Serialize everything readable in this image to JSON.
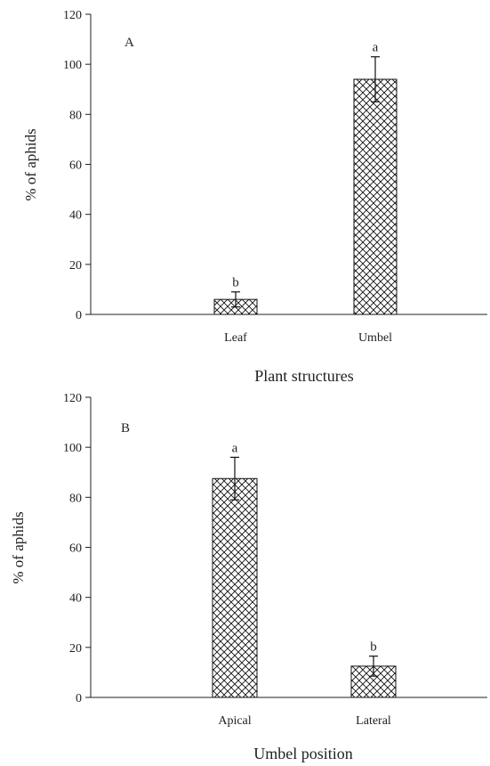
{
  "chart_data": [
    {
      "type": "bar",
      "panel_label": "A",
      "title": "",
      "xlabel": "Plant structures",
      "ylabel": "% of aphids",
      "categories": [
        "Leaf",
        "Umbel"
      ],
      "values": [
        6,
        94
      ],
      "errors": [
        3,
        9
      ],
      "significance_letters": [
        "b",
        "a"
      ],
      "ylim": [
        0,
        120
      ],
      "yticks": [
        "0",
        "20",
        "40",
        "60",
        "80",
        "100",
        "120"
      ],
      "grid": false,
      "legend": "none",
      "bar_fill": "crosshatch",
      "bar_color": "#111111"
    },
    {
      "type": "bar",
      "panel_label": "B",
      "title": "",
      "xlabel": "Umbel position",
      "ylabel": "% of  aphids",
      "categories": [
        "Apical",
        "Lateral"
      ],
      "values": [
        87.5,
        12.5
      ],
      "errors": [
        8.5,
        4
      ],
      "significance_letters": [
        "a",
        "b"
      ],
      "ylim": [
        0,
        120
      ],
      "yticks": [
        "0",
        "20",
        "40",
        "60",
        "80",
        "100",
        "120"
      ],
      "grid": false,
      "legend": "none",
      "bar_fill": "crosshatch",
      "bar_color": "#111111"
    }
  ]
}
